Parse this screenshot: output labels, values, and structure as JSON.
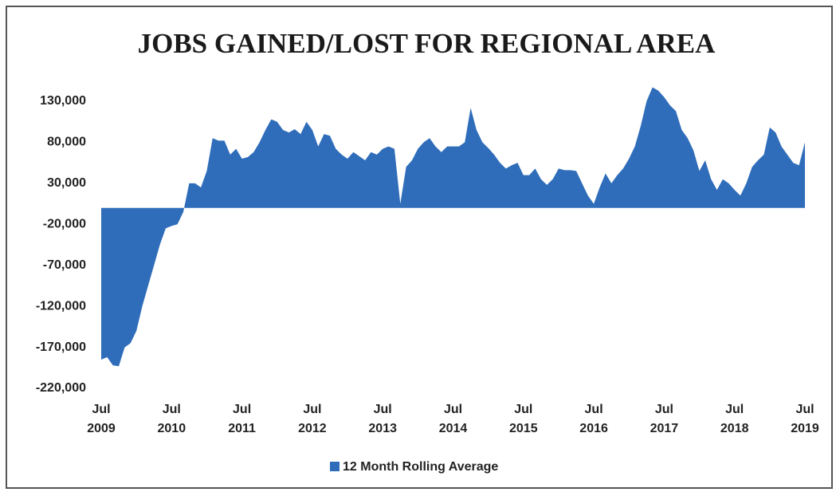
{
  "chart_data": {
    "type": "area",
    "title": "JOBS GAINED/LOST FOR REGIONAL AREA",
    "categories": [
      "Jul 2009",
      null,
      null,
      null,
      null,
      null,
      null,
      null,
      null,
      null,
      null,
      null,
      "Jul 2010",
      null,
      null,
      null,
      null,
      null,
      null,
      null,
      null,
      null,
      null,
      null,
      "Jul 2011",
      null,
      null,
      null,
      null,
      null,
      null,
      null,
      null,
      null,
      null,
      null,
      "Jul 2012",
      null,
      null,
      null,
      null,
      null,
      null,
      null,
      null,
      null,
      null,
      null,
      "Jul 2013",
      null,
      null,
      null,
      null,
      null,
      null,
      null,
      null,
      null,
      null,
      null,
      "Jul 2014",
      null,
      null,
      null,
      null,
      null,
      null,
      null,
      null,
      null,
      null,
      null,
      "Jul 2015",
      null,
      null,
      null,
      null,
      null,
      null,
      null,
      null,
      null,
      null,
      null,
      "Jul 2016",
      null,
      null,
      null,
      null,
      null,
      null,
      null,
      null,
      null,
      null,
      null,
      "Jul 2017",
      null,
      null,
      null,
      null,
      null,
      null,
      null,
      null,
      null,
      null,
      null,
      "Jul 2018",
      null,
      null,
      null,
      null,
      null,
      null,
      null,
      null,
      null,
      null,
      null,
      "Jul 2019"
    ],
    "series": [
      {
        "name": "12 Month Rolling Average",
        "color": "#2f6dba",
        "values": [
          -185000,
          -182000,
          -192000,
          -193000,
          -170000,
          -165000,
          -150000,
          -120000,
          -95000,
          -70000,
          -45000,
          -25000,
          -22000,
          -20000,
          -5000,
          30000,
          30000,
          25000,
          45000,
          85000,
          82000,
          82000,
          65000,
          72000,
          60000,
          62000,
          68000,
          80000,
          95000,
          108000,
          105000,
          95000,
          92000,
          96000,
          90000,
          105000,
          95000,
          75000,
          90000,
          88000,
          72000,
          65000,
          60000,
          68000,
          63000,
          58000,
          68000,
          65000,
          72000,
          75000,
          72000,
          5000,
          50000,
          58000,
          72000,
          80000,
          85000,
          75000,
          68000,
          75000,
          75000,
          75000,
          80000,
          122000,
          95000,
          80000,
          73000,
          65000,
          55000,
          48000,
          52000,
          55000,
          40000,
          40000,
          48000,
          35000,
          28000,
          35000,
          48000,
          46000,
          46000,
          45000,
          30000,
          15000,
          5000,
          25000,
          42000,
          30000,
          40000,
          48000,
          60000,
          75000,
          100000,
          130000,
          147000,
          143000,
          135000,
          125000,
          118000,
          95000,
          85000,
          70000,
          45000,
          58000,
          35000,
          22000,
          35000,
          30000,
          22000,
          15000,
          30000,
          50000,
          58000,
          65000,
          98000,
          92000,
          75000,
          65000,
          55000,
          52000,
          80000
        ]
      }
    ],
    "ylim": [
      -220000,
      130000
    ],
    "yticks": [
      {
        "value": -220000,
        "label": "-220,000"
      },
      {
        "value": -170000,
        "label": "-170,000"
      },
      {
        "value": -120000,
        "label": "-120,000"
      },
      {
        "value": -70000,
        "label": "-70,000"
      },
      {
        "value": -20000,
        "label": "-20,000"
      },
      {
        "value": 30000,
        "label": "30,000"
      },
      {
        "value": 80000,
        "label": "80,000"
      },
      {
        "value": 130000,
        "label": "130,000"
      }
    ],
    "legend": "bottom"
  }
}
